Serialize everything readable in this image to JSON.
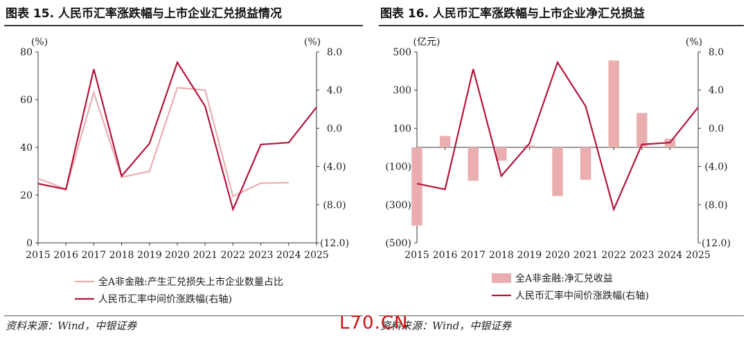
{
  "panels": [
    {
      "title": "图表 15. 人民币汇率涨跌幅与上市企业汇兑损益情况"
    },
    {
      "title": "图表 16. 人民币汇率涨跌幅与上市企业净汇兑损益"
    }
  ],
  "source_text": "资料来源：Wind，中银证券",
  "watermark": "L70.CN",
  "colors": {
    "dark": "#b5133a",
    "light": "#eaaeb0",
    "axis": "#333333",
    "text": "#1a1a1a"
  },
  "chart_data": [
    {
      "type": "line",
      "title": "图表 15. 人民币汇率涨跌幅与上市企业汇兑损益情况",
      "x": [
        "2015",
        "2016",
        "2017",
        "2018",
        "2019",
        "2020",
        "2021",
        "2022",
        "2023",
        "2024",
        "2025"
      ],
      "left_axis": {
        "unit": "(%)",
        "ylim": [
          0,
          80
        ],
        "ticks": [
          0,
          20,
          40,
          60,
          80
        ],
        "tick_labels": [
          "0",
          "20",
          "40",
          "60",
          "80"
        ]
      },
      "right_axis": {
        "unit": "(%)",
        "ylim": [
          -12,
          8
        ],
        "ticks": [
          8,
          4,
          0,
          -4,
          -8,
          -12
        ],
        "tick_labels": [
          "8.0",
          "4.0",
          "0.0",
          "(4.0)",
          "(8.0)",
          "(12.0)"
        ]
      },
      "series": [
        {
          "name": "全A非金融:产生汇兑损失上市企业数量占比",
          "axis": "left",
          "style": "light-line",
          "values": [
            27,
            22.5,
            63,
            27.5,
            30,
            65,
            64,
            19.5,
            25,
            25.2,
            null
          ]
        },
        {
          "name": "人民币汇率中间价涨跌幅(右轴)",
          "axis": "right",
          "style": "dark-line",
          "values": [
            -5.8,
            -6.4,
            6.2,
            -5.0,
            -1.6,
            6.9,
            2.3,
            -8.5,
            -1.7,
            -1.5,
            2.2
          ]
        }
      ],
      "legend": [
        {
          "label": "全A非金融:产生汇兑损失上市企业数量占比",
          "style": "light-line"
        },
        {
          "label": "人民币汇率中间价涨跌幅(右轴)",
          "style": "dark-line"
        }
      ]
    },
    {
      "type": "bar+line",
      "title": "图表 16. 人民币汇率涨跌幅与上市企业净汇兑损益",
      "x": [
        "2015",
        "2016",
        "2017",
        "2018",
        "2019",
        "2020",
        "2021",
        "2022",
        "2023",
        "2024",
        "2025"
      ],
      "left_axis": {
        "unit": "(亿元)",
        "ylim": [
          -500,
          500
        ],
        "ticks": [
          500,
          300,
          100,
          -100,
          -300,
          -500
        ],
        "tick_labels": [
          "500",
          "300",
          "100",
          "(100)",
          "(300)",
          "(500)"
        ]
      },
      "right_axis": {
        "unit": "(%)",
        "ylim": [
          -12,
          8
        ],
        "ticks": [
          8,
          4,
          0,
          -4,
          -8,
          -12
        ],
        "tick_labels": [
          "8.0",
          "4.0",
          "0.0",
          "(4.0)",
          "(8.0)",
          "(12.0)"
        ]
      },
      "series": [
        {
          "name": "全A非金融:净汇兑收益",
          "axis": "left",
          "style": "bar",
          "values": [
            -410,
            60,
            -175,
            -70,
            10,
            -255,
            -170,
            455,
            180,
            45,
            null
          ]
        },
        {
          "name": "人民币汇率中间价涨跌幅(右轴)",
          "axis": "right",
          "style": "dark-line",
          "values": [
            -5.8,
            -6.4,
            6.2,
            -5.0,
            -1.6,
            6.9,
            2.3,
            -8.5,
            -1.7,
            -1.5,
            2.2
          ]
        }
      ],
      "legend": [
        {
          "label": "全A非金融:净汇兑收益",
          "style": "bar"
        },
        {
          "label": "人民币汇率中间价涨跌幅(右轴)",
          "style": "dark-line"
        }
      ]
    }
  ]
}
